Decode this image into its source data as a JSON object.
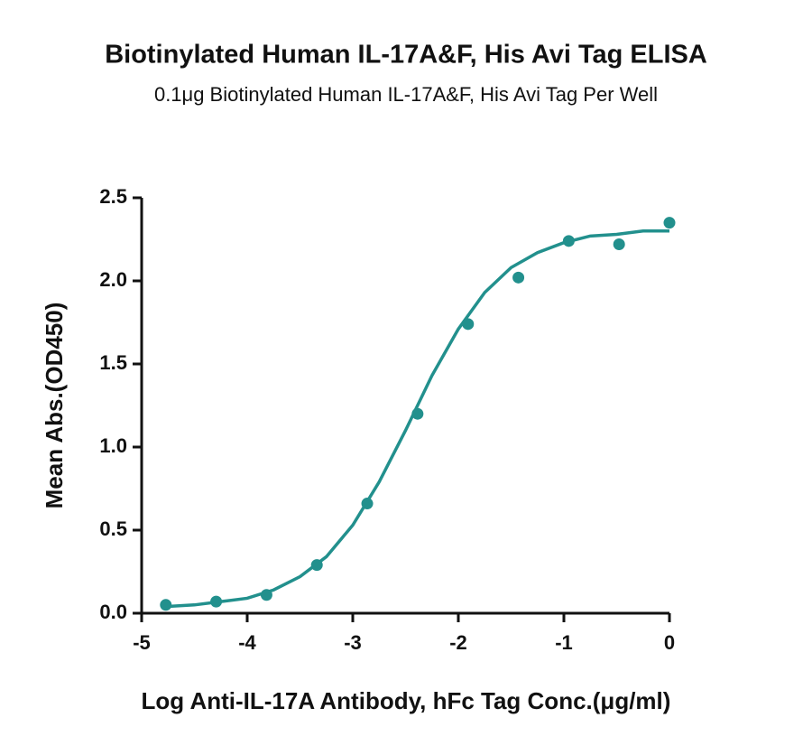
{
  "chart_data": {
    "type": "scatter",
    "title": "Biotinylated Human IL-17A&F, His Avi Tag ELISA",
    "subtitle": "0.1μg Biotinylated Human IL-17A&F, His Avi Tag Per Well",
    "x_label": "Log Anti-IL-17A Antibody, hFc Tag Conc.(μg/ml)",
    "y_label": "Mean Abs.(OD450)",
    "xlim": [
      -5,
      0
    ],
    "ylim": [
      0,
      2.5
    ],
    "xticks": [
      -5,
      -4,
      -3,
      -2,
      -1,
      0
    ],
    "yticks": [
      {
        "value": 0,
        "label": "0.0"
      },
      0.5,
      {
        "value": 1,
        "label": "1.0"
      },
      1.5,
      {
        "value": 2,
        "label": "2.0"
      },
      2.5
    ],
    "series": [
      {
        "mode": "markers",
        "color": "#22908d",
        "x": [
          -4.771,
          -4.294,
          -3.817,
          -3.34,
          -2.863,
          -2.386,
          -1.908,
          -1.431,
          -0.954,
          -0.477,
          0
        ],
        "values": [
          0.05,
          0.07,
          0.11,
          0.29,
          0.66,
          1.2,
          1.74,
          2.02,
          2.24,
          2.22,
          2.35
        ]
      },
      {
        "mode": "line",
        "color": "#22908d",
        "x": [
          -4.77,
          -4.5,
          -4.25,
          -4,
          -3.75,
          -3.5,
          -3.25,
          -3,
          -2.75,
          -2.5,
          -2.25,
          -2,
          -1.75,
          -1.5,
          -1.25,
          -1,
          -0.75,
          -0.5,
          -0.25,
          0
        ],
        "values": [
          0.04,
          0.05,
          0.07,
          0.09,
          0.14,
          0.22,
          0.34,
          0.53,
          0.79,
          1.1,
          1.43,
          1.71,
          1.93,
          2.08,
          2.17,
          2.23,
          2.27,
          2.28,
          2.3,
          2.3
        ]
      }
    ]
  }
}
